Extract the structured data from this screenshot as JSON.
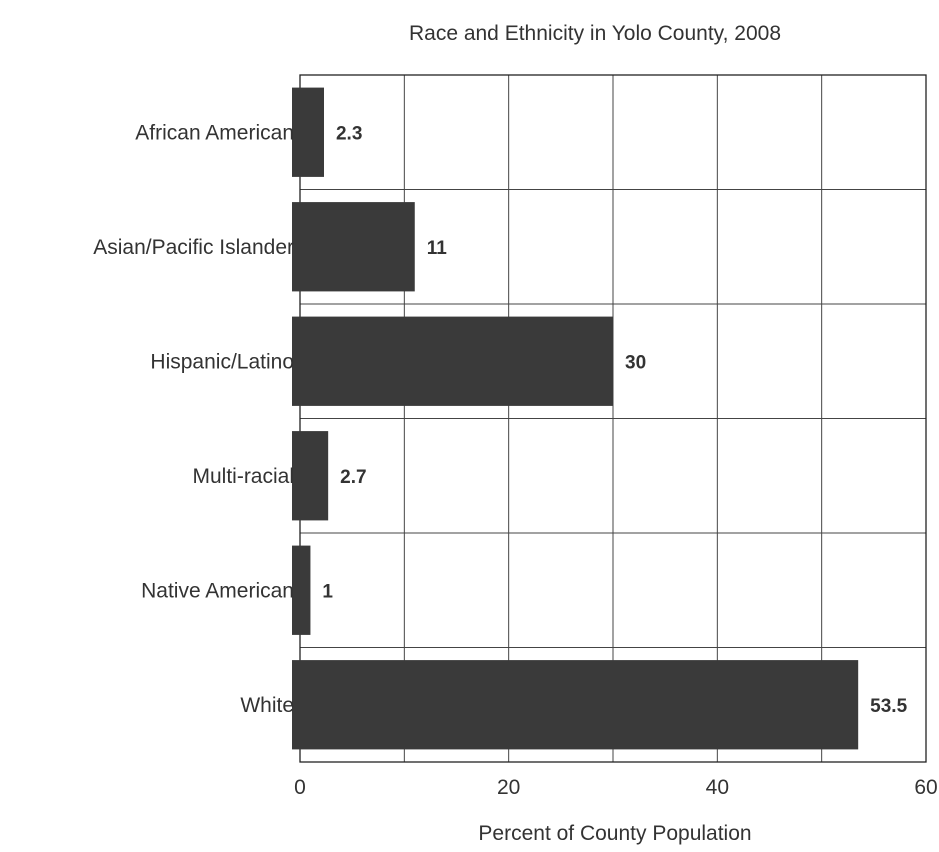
{
  "chart_data": {
    "type": "bar",
    "orientation": "horizontal",
    "title": "Race and Ethnicity in Yolo County, 2008",
    "xlabel": "Percent of County Population",
    "ylabel": "",
    "categories": [
      "African American",
      "Asian/Pacific Islander",
      "Hispanic/Latino",
      "Multi-racial",
      "Native American",
      "White"
    ],
    "values": [
      2.3,
      11,
      30,
      2.7,
      1,
      53.5
    ],
    "data_labels": [
      "2.3",
      "11",
      "30",
      "2.7",
      "1",
      "53.5"
    ],
    "xlim": [
      0,
      60
    ],
    "xticks": [
      0,
      20,
      40,
      60
    ],
    "grid": true,
    "legend": "none",
    "bar_color": "#3a3a3a"
  }
}
